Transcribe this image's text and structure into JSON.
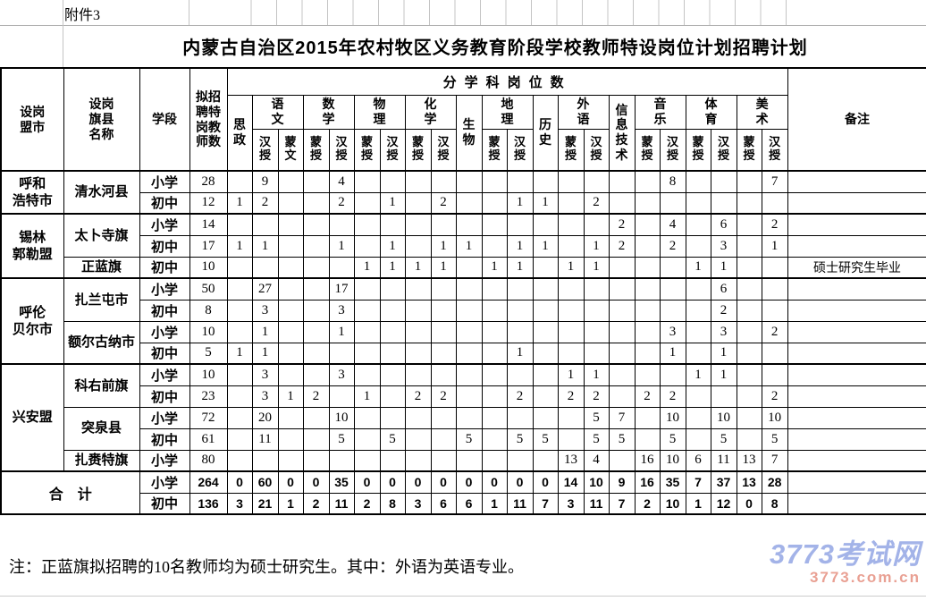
{
  "sheet": {
    "attachment_label": "附件3"
  },
  "title": "内蒙古自治区2015年农村牧区义务教育阶段学校教师特设岗位计划招聘计划",
  "table": {
    "header": {
      "league": "设岗\n盟市",
      "county": "设岗\n旗县\n名称",
      "stage": "学段",
      "planned": "拟招\n聘特\n岗教\n师数",
      "group": "分学科岗位数",
      "remark": "备注",
      "subjects": [
        {
          "name": "思\n政",
          "cols": 1
        },
        {
          "name": "语\n文",
          "cols": 2,
          "subs": [
            "汉\n授",
            "蒙\n文"
          ]
        },
        {
          "name": "数\n学",
          "cols": 2,
          "subs": [
            "蒙\n授",
            "汉\n授"
          ]
        },
        {
          "name": "物\n理",
          "cols": 2,
          "subs": [
            "蒙\n授",
            "汉\n授"
          ]
        },
        {
          "name": "化\n学",
          "cols": 2,
          "subs": [
            "蒙\n授",
            "汉\n授"
          ]
        },
        {
          "name": "生\n物",
          "cols": 1
        },
        {
          "name": "地\n理",
          "cols": 2,
          "subs": [
            "蒙\n授",
            "汉\n授"
          ]
        },
        {
          "name": "历\n史",
          "cols": 1
        },
        {
          "name": "外\n语",
          "cols": 2,
          "subs": [
            "蒙\n授",
            "汉\n授"
          ]
        },
        {
          "name": "信\n息\n技\n术",
          "cols": 1
        },
        {
          "name": "音\n乐",
          "cols": 2,
          "subs": [
            "蒙\n授",
            "汉\n授"
          ]
        },
        {
          "name": "体\n育",
          "cols": 2,
          "subs": [
            "蒙\n授",
            "汉\n授"
          ]
        },
        {
          "name": "美\n术",
          "cols": 2,
          "subs": [
            "蒙\n授",
            "汉\n授"
          ]
        }
      ]
    },
    "rows": [
      {
        "league": "呼和\n浩特市",
        "league_rowspan": 2,
        "county": "清水河县",
        "county_rowspan": 2,
        "stage": "小学",
        "total": 28,
        "values": [
          "",
          9,
          "",
          "",
          4,
          "",
          "",
          "",
          "",
          "",
          "",
          "",
          "",
          "",
          "",
          "",
          "",
          8,
          "",
          "",
          "",
          7
        ],
        "remark": ""
      },
      {
        "stage": "初中",
        "total": 12,
        "values": [
          1,
          2,
          "",
          "",
          2,
          "",
          1,
          "",
          2,
          "",
          "",
          1,
          1,
          "",
          2,
          "",
          "",
          "",
          "",
          "",
          "",
          ""
        ],
        "remark": ""
      },
      {
        "league": "锡林\n郭勒盟",
        "league_rowspan": 3,
        "county": "太卜寺旗",
        "county_rowspan": 2,
        "stage": "小学",
        "total": 14,
        "block_start": true,
        "values": [
          "",
          "",
          "",
          "",
          "",
          "",
          "",
          "",
          "",
          "",
          "",
          "",
          "",
          "",
          "",
          2,
          "",
          4,
          "",
          6,
          "",
          2
        ],
        "remark": ""
      },
      {
        "stage": "初中",
        "total": 17,
        "values": [
          1,
          1,
          "",
          "",
          1,
          "",
          1,
          "",
          1,
          1,
          "",
          1,
          1,
          "",
          1,
          2,
          "",
          2,
          "",
          3,
          "",
          1
        ],
        "remark": ""
      },
      {
        "county": "正蓝旗",
        "county_rowspan": 1,
        "stage": "初中",
        "total": 10,
        "values": [
          "",
          "",
          "",
          "",
          "",
          1,
          1,
          1,
          1,
          "",
          1,
          1,
          "",
          1,
          1,
          "",
          "",
          "",
          1,
          1,
          "",
          ""
        ],
        "remark": "硕士研究生毕业"
      },
      {
        "league": "呼伦\n贝尔市",
        "league_rowspan": 4,
        "county": "扎兰屯市",
        "county_rowspan": 2,
        "stage": "小学",
        "total": 50,
        "block_start": true,
        "values": [
          "",
          27,
          "",
          "",
          17,
          "",
          "",
          "",
          "",
          "",
          "",
          "",
          "",
          "",
          "",
          "",
          "",
          "",
          "",
          6,
          "",
          ""
        ],
        "remark": ""
      },
      {
        "stage": "初中",
        "total": 8,
        "values": [
          "",
          3,
          "",
          "",
          3,
          "",
          "",
          "",
          "",
          "",
          "",
          "",
          "",
          "",
          "",
          "",
          "",
          "",
          "",
          2,
          "",
          ""
        ],
        "remark": ""
      },
      {
        "county": "额尔古纳市",
        "county_rowspan": 2,
        "stage": "小学",
        "total": 10,
        "values": [
          "",
          1,
          "",
          "",
          1,
          "",
          "",
          "",
          "",
          "",
          "",
          "",
          "",
          "",
          "",
          "",
          "",
          3,
          "",
          3,
          "",
          2
        ],
        "remark": ""
      },
      {
        "stage": "初中",
        "total": 5,
        "values": [
          1,
          1,
          "",
          "",
          "",
          "",
          "",
          "",
          "",
          "",
          "",
          1,
          "",
          "",
          "",
          "",
          "",
          1,
          "",
          1,
          "",
          ""
        ],
        "remark": ""
      },
      {
        "league": "兴安盟",
        "league_rowspan": 5,
        "county": "科右前旗",
        "county_rowspan": 2,
        "stage": "小学",
        "total": 10,
        "block_start": true,
        "values": [
          "",
          3,
          "",
          "",
          3,
          "",
          "",
          "",
          "",
          "",
          "",
          "",
          "",
          1,
          1,
          "",
          "",
          "",
          1,
          1,
          "",
          ""
        ],
        "remark": ""
      },
      {
        "stage": "初中",
        "total": 23,
        "values": [
          "",
          3,
          1,
          2,
          "",
          1,
          "",
          2,
          2,
          "",
          "",
          2,
          "",
          2,
          2,
          "",
          2,
          2,
          "",
          "",
          "",
          2
        ],
        "remark": ""
      },
      {
        "county": "突泉县",
        "county_rowspan": 2,
        "stage": "小学",
        "total": 72,
        "values": [
          "",
          20,
          "",
          "",
          10,
          "",
          "",
          "",
          "",
          "",
          "",
          "",
          "",
          "",
          5,
          7,
          "",
          10,
          "",
          10,
          "",
          10
        ],
        "remark": ""
      },
      {
        "stage": "初中",
        "total": 61,
        "values": [
          "",
          11,
          "",
          "",
          5,
          "",
          5,
          "",
          "",
          5,
          "",
          5,
          5,
          "",
          5,
          5,
          "",
          5,
          "",
          5,
          "",
          5
        ],
        "remark": ""
      },
      {
        "county": "扎赉特旗",
        "county_rowspan": 1,
        "stage": "小学",
        "total": 80,
        "values": [
          "",
          "",
          "",
          "",
          "",
          "",
          "",
          "",
          "",
          "",
          "",
          "",
          "",
          13,
          4,
          "",
          16,
          10,
          6,
          11,
          13,
          7
        ],
        "remark": ""
      },
      {
        "total_label": "合　计",
        "stage": "小学",
        "total": 264,
        "block_start": true,
        "bold": true,
        "values": [
          0,
          60,
          0,
          0,
          35,
          0,
          0,
          0,
          0,
          0,
          0,
          0,
          0,
          14,
          10,
          9,
          16,
          35,
          7,
          37,
          13,
          28
        ],
        "remark": ""
      },
      {
        "stage": "初中",
        "total": 136,
        "bold": true,
        "values": [
          3,
          21,
          1,
          2,
          11,
          2,
          8,
          3,
          6,
          6,
          1,
          11,
          7,
          3,
          11,
          7,
          2,
          10,
          1,
          12,
          0,
          8
        ],
        "remark": ""
      }
    ]
  },
  "note": "注：正蓝旗拟招聘的10名教师均为硕士研究生。其中：外语为英语专业。",
  "watermark": {
    "line1": "3773考试网",
    "line2": "3773.com.cn",
    "color1": "#a3b3e8",
    "color2": "#e9a093"
  }
}
